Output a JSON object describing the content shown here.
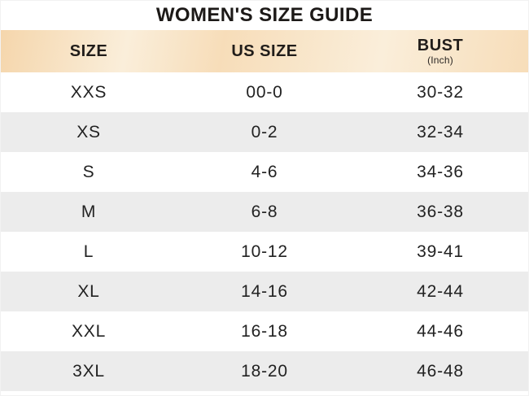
{
  "title": "WOMEN'S SIZE GUIDE",
  "header": {
    "size_label": "SIZE",
    "us_size_label": "US SIZE",
    "bust_label": "BUST",
    "bust_unit": "(Inch)"
  },
  "chart_data": {
    "type": "table",
    "title": "WOMEN'S SIZE GUIDE",
    "columns": [
      "SIZE",
      "US SIZE",
      "BUST (Inch)"
    ],
    "rows": [
      [
        "XXS",
        "00-0",
        "30-32"
      ],
      [
        "XS",
        "0-2",
        "32-34"
      ],
      [
        "S",
        "4-6",
        "34-36"
      ],
      [
        "M",
        "6-8",
        "36-38"
      ],
      [
        "L",
        "10-12",
        "39-41"
      ],
      [
        "XL",
        "14-16",
        "42-44"
      ],
      [
        "XXL",
        "16-18",
        "44-46"
      ],
      [
        "3XL",
        "18-20",
        "46-48"
      ]
    ],
    "layout_hints": {
      "striped_rows": true,
      "stripe_on": "even_data_rows_2_4_6_8",
      "header_background": "peach-gradient",
      "text_alignment": "center"
    }
  },
  "colors": {
    "header_peach": "#f7ddb9",
    "header_peach_light": "#faeeda",
    "header_peach_dark": "#f5d6ac",
    "row_alt": "#ececec",
    "text": "#222222",
    "title_text": "#1c1917"
  }
}
